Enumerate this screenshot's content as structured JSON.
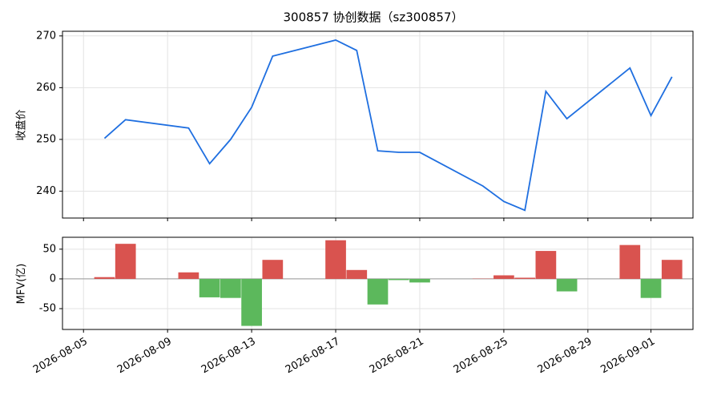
{
  "chart_data": [
    {
      "type": "line",
      "title": "300857 协创数据（sz300857）",
      "ylabel": "收盘价",
      "color": "#1f6fe0",
      "grid": true,
      "x": [
        "2026-08-06",
        "2026-08-07",
        "2026-08-10",
        "2026-08-11",
        "2026-08-12",
        "2026-08-13",
        "2026-08-14",
        "2026-08-17",
        "2026-08-18",
        "2026-08-19",
        "2026-08-20",
        "2026-08-21",
        "2026-08-24",
        "2026-08-25",
        "2026-08-26",
        "2026-08-27",
        "2026-08-28",
        "2026-08-31",
        "2026-09-01",
        "2026-09-02"
      ],
      "values": [
        250.2,
        253.8,
        252.2,
        245.3,
        250.0,
        256.2,
        266.1,
        269.2,
        267.2,
        247.8,
        247.5,
        247.5,
        241.0,
        238.0,
        236.3,
        259.3,
        254.0,
        263.8,
        254.6,
        262.1
      ],
      "xlim": [
        "2026-08-04",
        "2026-09-03"
      ],
      "ylim": [
        234.8,
        270.9
      ],
      "yticks": [
        240,
        250,
        260,
        270
      ]
    },
    {
      "type": "bar",
      "ylabel": "MFV(亿)",
      "positive_color": "#d9534f",
      "negative_color": "#5cb85c",
      "grid": true,
      "x": [
        "2026-08-06",
        "2026-08-07",
        "2026-08-10",
        "2026-08-11",
        "2026-08-12",
        "2026-08-13",
        "2026-08-14",
        "2026-08-17",
        "2026-08-18",
        "2026-08-19",
        "2026-08-20",
        "2026-08-21",
        "2026-08-24",
        "2026-08-25",
        "2026-08-26",
        "2026-08-27",
        "2026-08-28",
        "2026-08-31",
        "2026-09-01",
        "2026-09-02"
      ],
      "values": [
        3,
        59,
        11,
        -31,
        -32,
        -79,
        32,
        65,
        15,
        -43,
        -2,
        -6,
        0.5,
        6,
        2,
        47,
        -21,
        57,
        -32,
        32
      ],
      "xlim": [
        "2026-08-04",
        "2026-09-03"
      ],
      "ylim": [
        -85,
        70
      ],
      "yticks": [
        -50,
        0,
        50
      ],
      "xticks": [
        "2026-08-05",
        "2026-08-09",
        "2026-08-13",
        "2026-08-17",
        "2026-08-21",
        "2026-08-25",
        "2026-08-29",
        "2026-09-01"
      ]
    }
  ]
}
